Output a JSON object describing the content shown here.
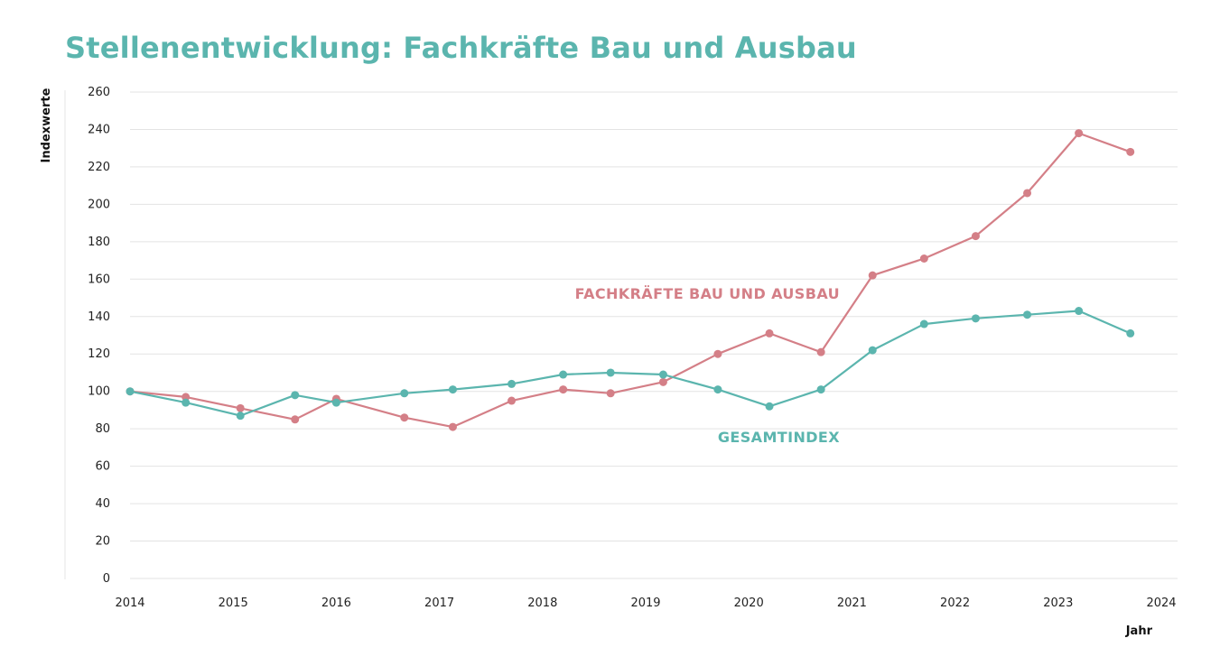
{
  "title": "Stellenentwicklung: Fachkräfte Bau und Ausbau",
  "chart_data": {
    "type": "line",
    "title": "Stellenentwicklung: Fachkräfte Bau und Ausbau",
    "xlabel": "Jahr",
    "ylabel": "Indexwerte",
    "ylim": [
      0,
      260
    ],
    "yticks": [
      0,
      20,
      40,
      60,
      80,
      100,
      120,
      140,
      160,
      180,
      200,
      220,
      240,
      260
    ],
    "xlim": [
      2014,
      2024
    ],
    "xticks": [
      2014,
      2015,
      2016,
      2017,
      2018,
      2019,
      2020,
      2021,
      2022,
      2023,
      2024
    ],
    "grid": "horizontal",
    "series": [
      {
        "name": "FACHKRÄFTE BAU UND AUSBAU",
        "color": "#d47f87",
        "points": [
          [
            2014.0,
            100
          ],
          [
            2014.54,
            97
          ],
          [
            2015.07,
            91
          ],
          [
            2015.6,
            85
          ],
          [
            2016.0,
            96
          ],
          [
            2016.66,
            86
          ],
          [
            2017.13,
            81
          ],
          [
            2017.7,
            95
          ],
          [
            2018.2,
            101
          ],
          [
            2018.66,
            99
          ],
          [
            2019.17,
            105
          ],
          [
            2019.7,
            120
          ],
          [
            2020.2,
            131
          ],
          [
            2020.7,
            121
          ],
          [
            2021.2,
            162
          ],
          [
            2021.7,
            171
          ],
          [
            2022.2,
            183
          ],
          [
            2022.7,
            206
          ],
          [
            2023.2,
            238
          ],
          [
            2023.7,
            228
          ]
        ]
      },
      {
        "name": "GESAMTINDEX",
        "color": "#5bb5ae",
        "points": [
          [
            2014.0,
            100
          ],
          [
            2014.54,
            94
          ],
          [
            2015.07,
            87
          ],
          [
            2015.6,
            98
          ],
          [
            2016.0,
            94
          ],
          [
            2016.66,
            99
          ],
          [
            2017.13,
            101
          ],
          [
            2017.7,
            104
          ],
          [
            2018.2,
            109
          ],
          [
            2018.66,
            110
          ],
          [
            2019.17,
            109
          ],
          [
            2019.7,
            101
          ],
          [
            2020.2,
            92
          ],
          [
            2020.7,
            101
          ],
          [
            2021.2,
            122
          ],
          [
            2021.7,
            136
          ],
          [
            2022.2,
            139
          ],
          [
            2022.7,
            141
          ],
          [
            2023.2,
            143
          ],
          [
            2023.7,
            131
          ]
        ]
      }
    ]
  }
}
